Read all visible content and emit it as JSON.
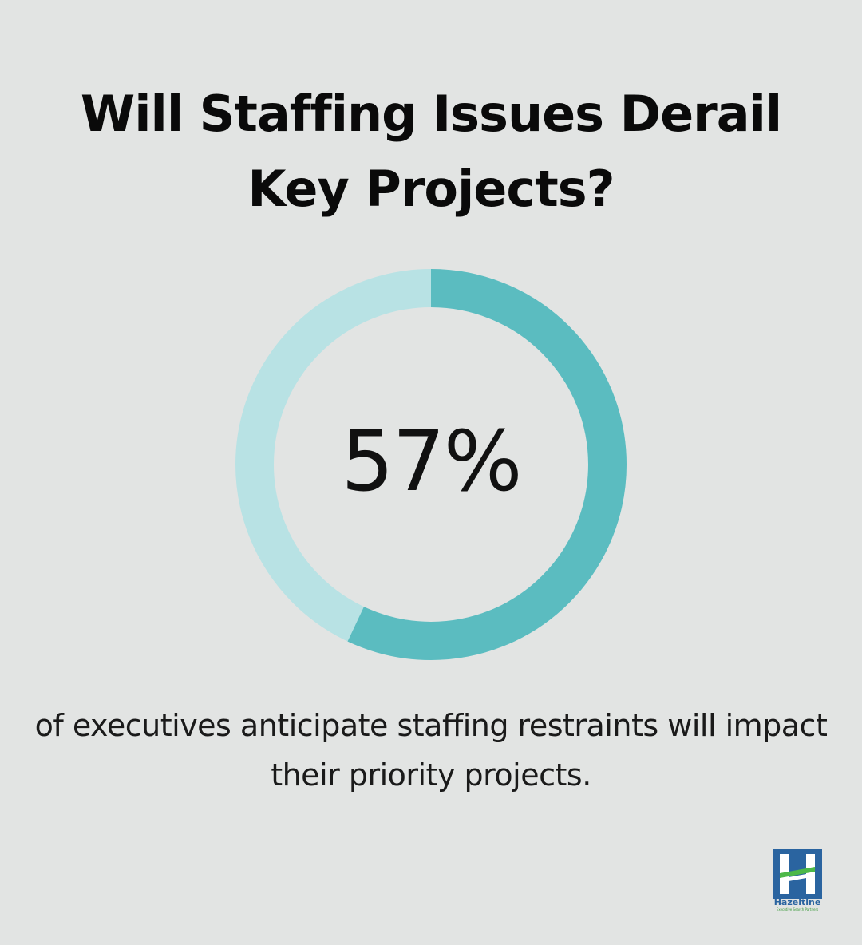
{
  "title": "Will Staffing Issues Derail Key Projects?",
  "chart_data": {
    "type": "pie",
    "variant": "donut",
    "title": "Will Staffing Issues Derail Key Projects?",
    "value": 57,
    "value_label": "57%",
    "caption": "of executives anticipate staffing restraints will impact their priority projects.",
    "colors": {
      "filled": "#5bbcc0",
      "remaining": "#b8e2e4"
    }
  },
  "logo": {
    "icon": "hazeltine-logo-icon",
    "name": "Hazeltine",
    "tagline": "Executive Search Partners",
    "colors": {
      "blue": "#2a64a0",
      "green": "#4cb848"
    }
  }
}
